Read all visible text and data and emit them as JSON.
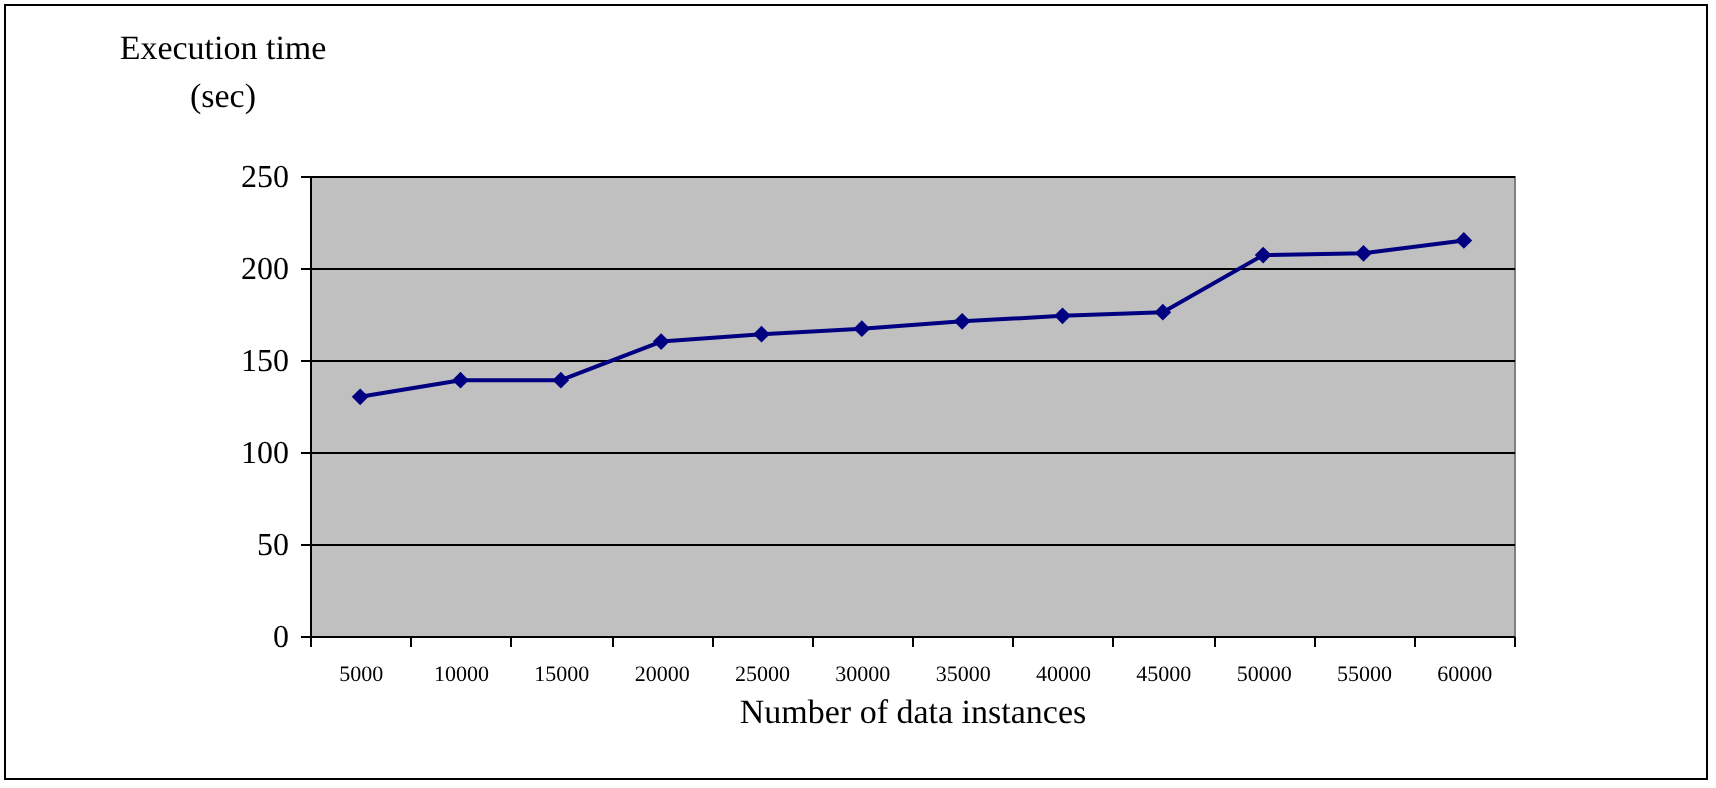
{
  "chart_data": {
    "type": "line",
    "xlabel": "Number of data instances",
    "ylabel": "Execution time (sec)",
    "categories": [
      "5000",
      "10000",
      "15000",
      "20000",
      "25000",
      "30000",
      "35000",
      "40000",
      "45000",
      "50000",
      "55000",
      "60000"
    ],
    "series": [
      {
        "color": "#000080",
        "values": [
          130,
          139,
          139,
          160,
          164,
          167,
          171,
          174,
          176,
          207,
          208,
          215
        ]
      }
    ],
    "ylim": [
      0,
      250
    ],
    "yticks": [
      0,
      50,
      100,
      150,
      200,
      250
    ],
    "grid": "y",
    "marker": "diamond"
  }
}
